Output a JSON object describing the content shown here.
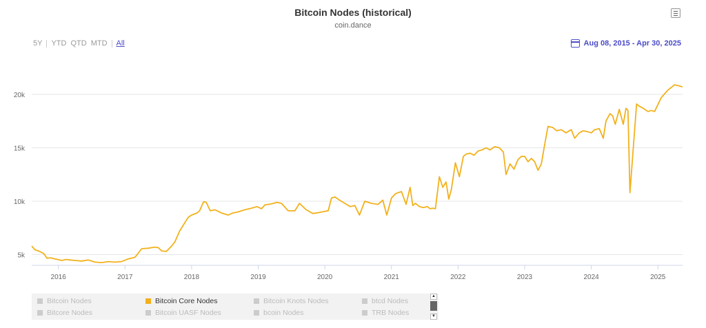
{
  "header": {
    "title": "Bitcoin Nodes (historical)",
    "subtitle": "coin.dance"
  },
  "range_selector": {
    "options": [
      "5Y",
      "YTD",
      "QTD",
      "MTD",
      "All"
    ],
    "active": "All"
  },
  "date_range": "Aug 08, 2015 - Apr 30, 2025",
  "legend": {
    "items": [
      {
        "label": "Bitcoin Nodes",
        "active": false
      },
      {
        "label": "Bitcoin Core Nodes",
        "active": true
      },
      {
        "label": "Bitcoin Knots Nodes",
        "active": false
      },
      {
        "label": "btcd Nodes",
        "active": false
      },
      {
        "label": "Bitcore Nodes",
        "active": false
      },
      {
        "label": "Bitcoin UASF Nodes",
        "active": false
      },
      {
        "label": "bcoin Nodes",
        "active": false
      },
      {
        "label": "TRB Nodes",
        "active": false
      }
    ]
  },
  "colors": {
    "series": "#f2b11b",
    "accent": "#4b4bc9",
    "grid": "#e6e6e6"
  },
  "icons": [
    "menu-icon",
    "calendar-icon",
    "scroll-up-icon",
    "scroll-down-icon"
  ],
  "chart_data": {
    "type": "line",
    "title": "Bitcoin Nodes (historical)",
    "subtitle": "coin.dance",
    "x_ticks": [
      "2016",
      "2017",
      "2018",
      "2019",
      "2020",
      "2021",
      "2022",
      "2023",
      "2024",
      "2025"
    ],
    "y_ticks": [
      "5k",
      "10k",
      "15k",
      "20k"
    ],
    "ylim": [
      4000,
      24000
    ],
    "xlim": [
      2015.6,
      2025.37
    ],
    "grid": true,
    "legend_position": "bottom",
    "series": [
      {
        "name": "Bitcoin Core Nodes",
        "x": [
          2015.6,
          2015.65,
          2015.72,
          2015.78,
          2015.83,
          2015.88,
          2015.95,
          2016.05,
          2016.12,
          2016.18,
          2016.25,
          2016.35,
          2016.45,
          2016.55,
          2016.65,
          2016.75,
          2016.85,
          2016.95,
          2017.05,
          2017.15,
          2017.25,
          2017.35,
          2017.45,
          2017.5,
          2017.55,
          2017.62,
          2017.7,
          2017.75,
          2017.82,
          2017.9,
          2017.95,
          2018.0,
          2018.08,
          2018.12,
          2018.18,
          2018.22,
          2018.28,
          2018.35,
          2018.45,
          2018.55,
          2018.62,
          2018.7,
          2018.8,
          2018.9,
          2018.98,
          2019.05,
          2019.1,
          2019.15,
          2019.2,
          2019.28,
          2019.35,
          2019.45,
          2019.55,
          2019.62,
          2019.72,
          2019.82,
          2019.92,
          2020.0,
          2020.05,
          2020.1,
          2020.15,
          2020.22,
          2020.3,
          2020.38,
          2020.45,
          2020.52,
          2020.6,
          2020.7,
          2020.8,
          2020.87,
          2020.93,
          2021.0,
          2021.03,
          2021.06,
          2021.1,
          2021.15,
          2021.22,
          2021.28,
          2021.32,
          2021.36,
          2021.42,
          2021.48,
          2021.54,
          2021.58,
          2021.62,
          2021.66,
          2021.72,
          2021.77,
          2021.82,
          2021.86,
          2021.9,
          2021.96,
          2022.02,
          2022.08,
          2022.12,
          2022.18,
          2022.24,
          2022.3,
          2022.36,
          2022.42,
          2022.48,
          2022.55,
          2022.62,
          2022.68,
          2022.72,
          2022.78,
          2022.84,
          2022.9,
          2022.95,
          2023.0,
          2023.05,
          2023.1,
          2023.15,
          2023.2,
          2023.25,
          2023.3,
          2023.35,
          2023.42,
          2023.48,
          2023.55,
          2023.62,
          2023.7,
          2023.75,
          2023.82,
          2023.88,
          2023.95,
          2024.0,
          2024.05,
          2024.12,
          2024.18,
          2024.22,
          2024.28,
          2024.32,
          2024.36,
          2024.42,
          2024.48,
          2024.52,
          2024.55,
          2024.58,
          2024.68,
          2024.72,
          2024.78,
          2024.85,
          2024.9,
          2024.95,
          2025.05,
          2025.15,
          2025.25,
          2025.32,
          2025.37
        ],
        "y": [
          5800,
          5450,
          5300,
          5100,
          4650,
          4700,
          4600,
          4450,
          4550,
          4500,
          4450,
          4400,
          4500,
          4300,
          4250,
          4350,
          4300,
          4350,
          4600,
          4750,
          5550,
          5600,
          5700,
          5650,
          5350,
          5300,
          5800,
          6200,
          7200,
          8000,
          8500,
          8700,
          8900,
          9100,
          9950,
          9900,
          9100,
          9200,
          8900,
          8700,
          8900,
          9000,
          9200,
          9350,
          9500,
          9300,
          9650,
          9700,
          9750,
          9900,
          9800,
          9100,
          9100,
          9800,
          9200,
          8850,
          8950,
          9050,
          9100,
          10300,
          10400,
          10100,
          9800,
          9500,
          9600,
          8700,
          10000,
          9800,
          9700,
          10100,
          8700,
          10300,
          10500,
          10700,
          10800,
          10900,
          9700,
          11300,
          9600,
          9800,
          9500,
          9400,
          9500,
          9300,
          9350,
          9300,
          12300,
          11300,
          11800,
          10200,
          11100,
          13600,
          12300,
          14200,
          14400,
          14500,
          14300,
          14700,
          14800,
          15000,
          14800,
          15100,
          15000,
          14600,
          12500,
          13500,
          13000,
          13900,
          14200,
          14200,
          13700,
          14000,
          13700,
          12900,
          13500,
          15300,
          17000,
          16900,
          16600,
          16700,
          16400,
          16700,
          15900,
          16400,
          16600,
          16500,
          16400,
          16700,
          16800,
          15900,
          17500,
          18200,
          18000,
          17200,
          18600,
          17200,
          18700,
          18500,
          10800,
          19100,
          18900,
          18700,
          18400,
          18500,
          18400,
          19700,
          20400,
          20900,
          20800,
          20700
        ]
      }
    ]
  }
}
